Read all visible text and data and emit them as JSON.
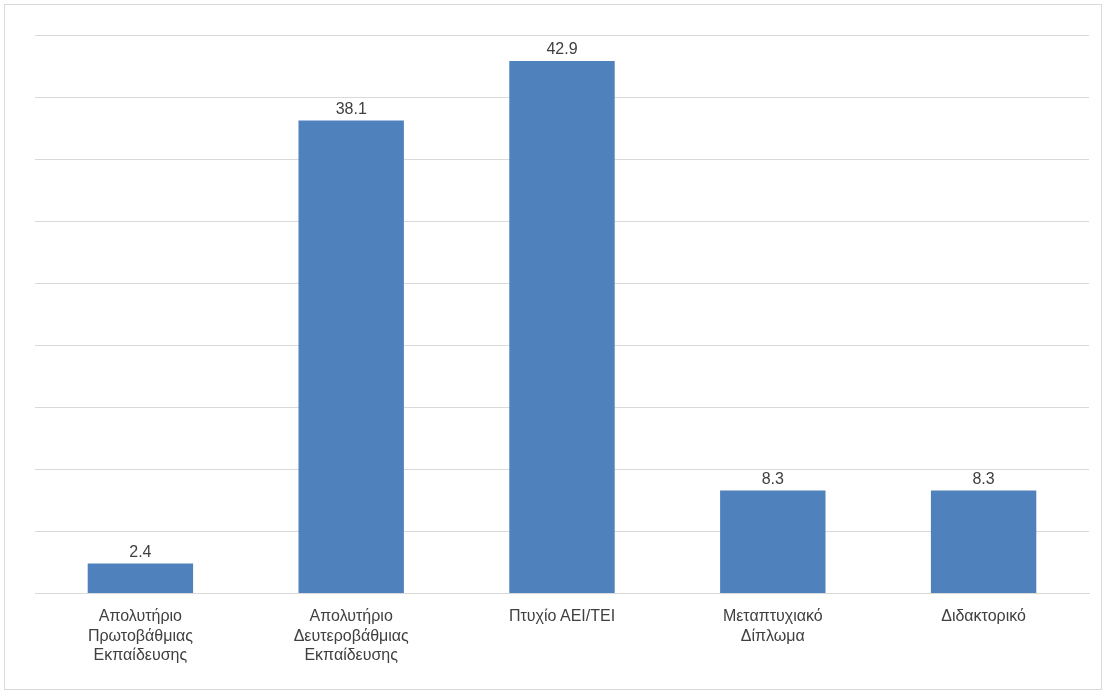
{
  "chart_data": {
    "type": "bar",
    "categories": [
      "Απολυτήριο Πρωτοβάθμιας Εκπαίδευσης",
      "Απολυτήριο Δευτεροβάθμιας Εκπαίδευσης",
      "Πτυχίο ΑΕΙ/ΤΕΙ",
      "Μεταπτυχιακό Δίπλωμα",
      "Διδακτορικό"
    ],
    "values": [
      2.4,
      38.1,
      42.9,
      8.3,
      8.3
    ],
    "color": "#4f81bd",
    "ylim": [
      0,
      45
    ],
    "yticks": [
      {
        "value": 0,
        "label": null
      },
      {
        "value": 5,
        "label": null
      },
      {
        "value": 10,
        "label": null
      },
      {
        "value": 15,
        "label": null
      },
      {
        "value": 20,
        "label": null
      },
      {
        "value": 25,
        "label": null
      },
      {
        "value": 30,
        "label": null
      },
      {
        "value": 35,
        "label": null
      },
      {
        "value": 40,
        "label": null
      },
      {
        "value": 45,
        "label": null
      }
    ],
    "tick_labels": "x",
    "grid": "y",
    "data_labels": true,
    "legend": false
  }
}
